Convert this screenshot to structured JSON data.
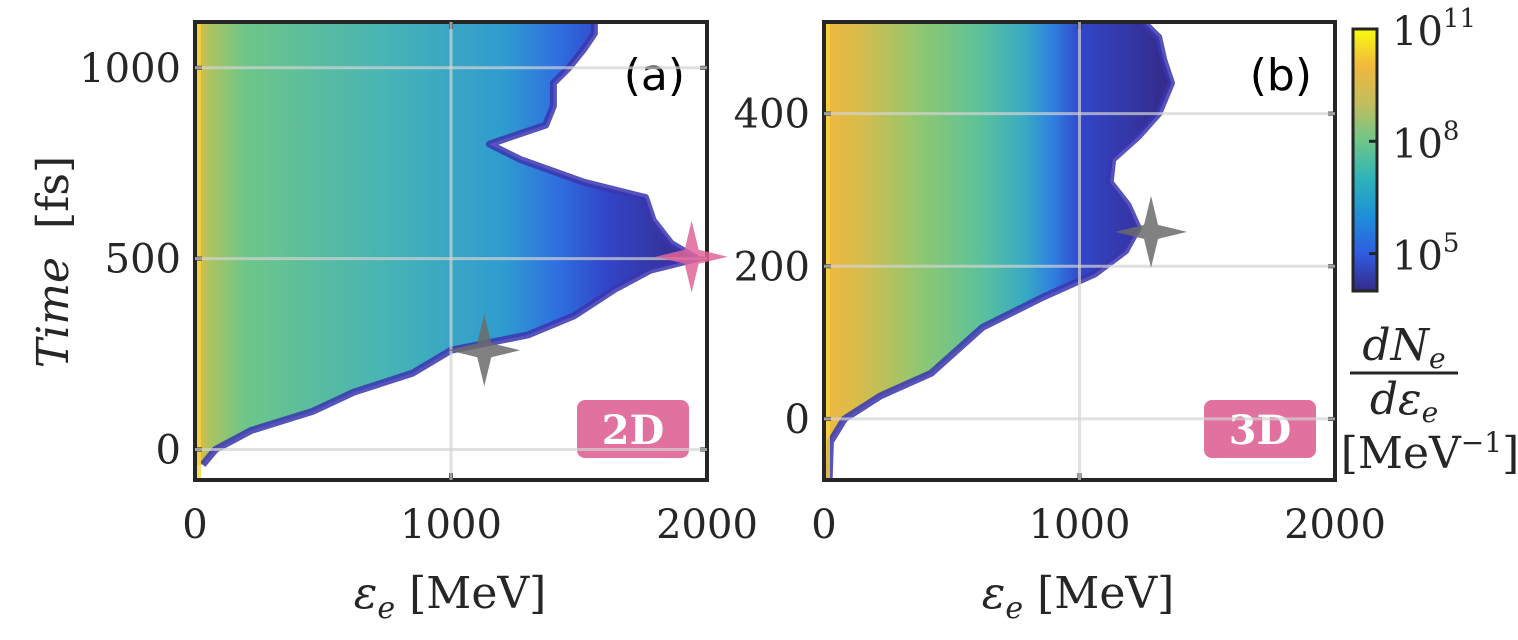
{
  "figure": {
    "colorbar": {
      "ticks": [
        {
          "base": "10",
          "exp": "11",
          "value": 100000000000.0
        },
        {
          "base": "10",
          "exp": "8",
          "value": 100000000.0
        },
        {
          "base": "10",
          "exp": "5",
          "value": 100000.0
        }
      ],
      "label_numerator": "dN",
      "label_numerator_sub": "e",
      "label_denominator": "dε",
      "label_denominator_sub": "e",
      "label_unit": "[MeV",
      "label_unit_exp": "−1",
      "label_unit_close": "]",
      "scale": "log",
      "range": [
        10000.0,
        100000000000.0
      ],
      "colormap": "parula",
      "colors": [
        "#352a87",
        "#2f5ce1",
        "#1e8fd8",
        "#2db3b8",
        "#6dc68a",
        "#c2bd5d",
        "#f0b83e",
        "#f9fb0e"
      ]
    },
    "colors": {
      "badge": "#df6a9a",
      "pink_star": "#e0649a",
      "gray_star": "#6b6b6b",
      "grid": "#d4d4d4",
      "axis": "#262626"
    }
  },
  "chart_data": [
    {
      "type": "heatmap",
      "panel_label": "(a)",
      "badge": "2D",
      "xlabel": "ε",
      "xlabel_sub": "e",
      "xlabel_unit": "[MeV]",
      "ylabel": "Time",
      "ylabel_unit": "[fs]",
      "xlim": [
        0,
        2000
      ],
      "ylim": [
        -80,
        1120
      ],
      "xticks": [
        "0",
        "1000",
        "2000"
      ],
      "xtick_values": [
        0,
        1000,
        2000
      ],
      "yticks": [
        "0",
        "500",
        "1000"
      ],
      "ytick_values": [
        0,
        500,
        1000
      ],
      "grid": true,
      "cutoff_energy_profile": [
        [
          -40,
          30
        ],
        [
          0,
          80
        ],
        [
          50,
          220
        ],
        [
          100,
          460
        ],
        [
          150,
          620
        ],
        [
          200,
          850
        ],
        [
          260,
          1000
        ],
        [
          300,
          1300
        ],
        [
          350,
          1480
        ],
        [
          420,
          1640
        ],
        [
          470,
          1780
        ],
        [
          500,
          1960
        ],
        [
          540,
          1860
        ],
        [
          600,
          1790
        ],
        [
          660,
          1760
        ],
        [
          700,
          1520
        ],
        [
          760,
          1270
        ],
        [
          800,
          1150
        ],
        [
          850,
          1370
        ],
        [
          900,
          1400
        ],
        [
          960,
          1400
        ],
        [
          1000,
          1460
        ],
        [
          1050,
          1520
        ],
        [
          1090,
          1560
        ],
        [
          1120,
          1560
        ]
      ],
      "markers": [
        {
          "name": "gray-star",
          "x": 1130,
          "y": 260,
          "color": "#6b6b6b"
        },
        {
          "name": "pink-star",
          "x": 1940,
          "y": 505,
          "color": "#e0649a"
        }
      ]
    },
    {
      "type": "heatmap",
      "panel_label": "(b)",
      "badge": "3D",
      "xlabel": "ε",
      "xlabel_sub": "e",
      "xlabel_unit": "[MeV]",
      "ylabel": "",
      "xlim": [
        0,
        2000
      ],
      "ylim": [
        -80,
        520
      ],
      "xticks": [
        "0",
        "1000",
        "2000"
      ],
      "xtick_values": [
        0,
        1000,
        2000
      ],
      "yticks": [
        "0",
        "200",
        "400"
      ],
      "ytick_values": [
        0,
        200,
        400
      ],
      "grid": true,
      "cutoff_energy_profile": [
        [
          -80,
          20
        ],
        [
          -30,
          25
        ],
        [
          0,
          80
        ],
        [
          30,
          220
        ],
        [
          60,
          420
        ],
        [
          90,
          520
        ],
        [
          120,
          620
        ],
        [
          160,
          860
        ],
        [
          190,
          1060
        ],
        [
          220,
          1180
        ],
        [
          250,
          1230
        ],
        [
          280,
          1190
        ],
        [
          310,
          1120
        ],
        [
          340,
          1130
        ],
        [
          370,
          1230
        ],
        [
          400,
          1310
        ],
        [
          440,
          1360
        ],
        [
          470,
          1330
        ],
        [
          500,
          1310
        ],
        [
          520,
          1250
        ]
      ],
      "markers": [
        {
          "name": "gray-star",
          "x": 1280,
          "y": 245,
          "color": "#6b6b6b"
        }
      ]
    }
  ]
}
